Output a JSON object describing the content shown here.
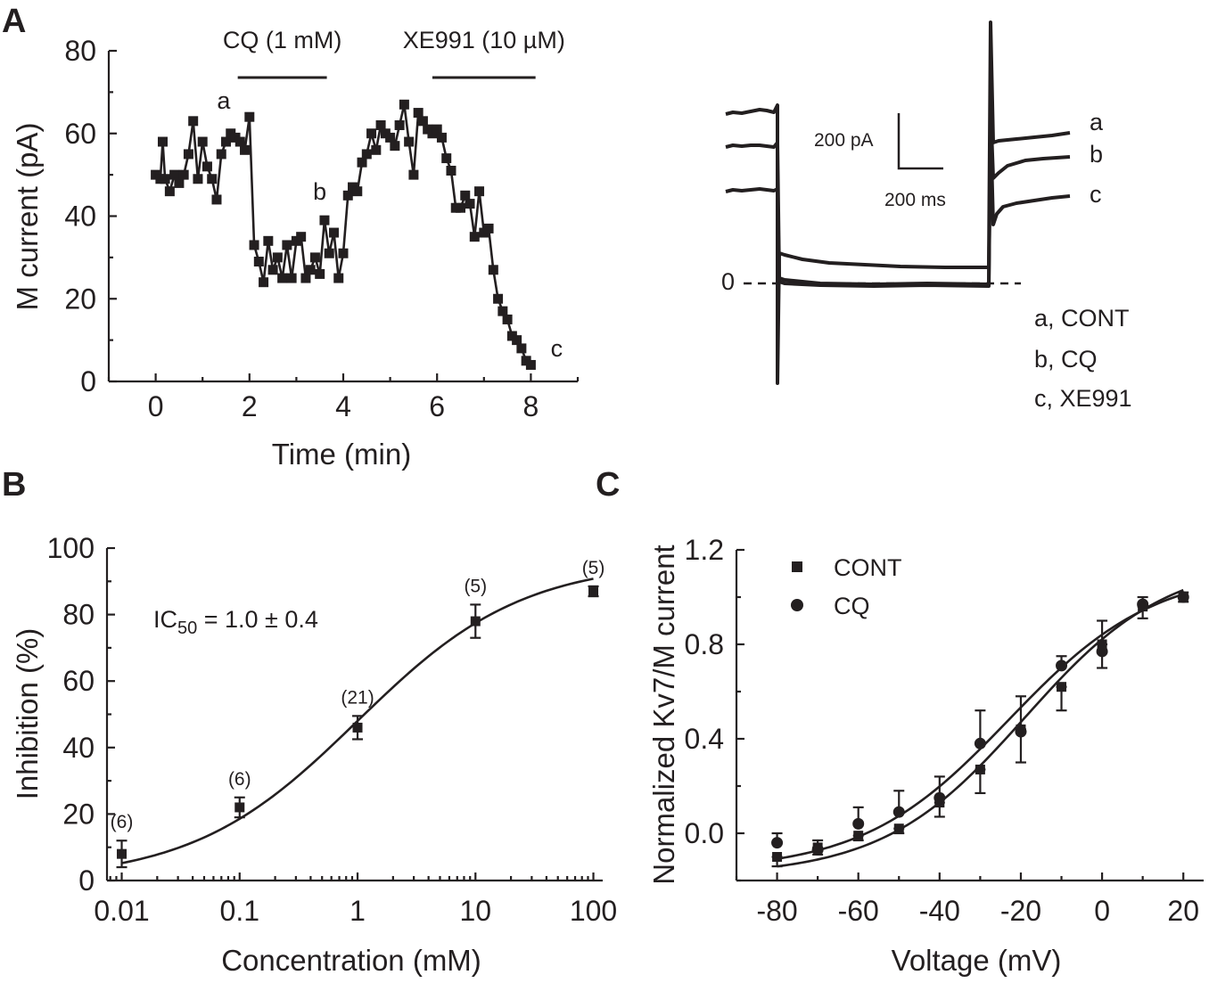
{
  "panels": {
    "A": "A",
    "B": "B",
    "C": "C"
  },
  "chart_data": [
    {
      "id": "A-time",
      "type": "line",
      "xlabel": "Time (min)",
      "ylabel": "M current (pA)",
      "xlim": [
        -1,
        9
      ],
      "ylim": [
        0,
        80
      ],
      "xticks": [
        0,
        2,
        4,
        6,
        8
      ],
      "yticks": [
        0,
        20,
        40,
        60,
        80
      ],
      "treatments": [
        {
          "label": "CQ (1 mM)",
          "start": 1.75,
          "end": 3.65
        },
        {
          "label": "XE991 (10 µM)",
          "start": 5.9,
          "end": 8.1
        }
      ],
      "point_labels": [
        {
          "text": "a",
          "x": 1.45,
          "y": 66
        },
        {
          "text": "b",
          "x": 3.5,
          "y": 44
        },
        {
          "text": "c",
          "x": 8.55,
          "y": 6
        }
      ],
      "x": [
        0.0,
        0.1,
        0.15,
        0.2,
        0.3,
        0.4,
        0.5,
        0.6,
        0.7,
        0.8,
        0.9,
        1.0,
        1.1,
        1.2,
        1.3,
        1.4,
        1.5,
        1.6,
        1.7,
        1.8,
        1.9,
        2.0,
        2.1,
        2.2,
        2.3,
        2.4,
        2.5,
        2.6,
        2.7,
        2.8,
        2.9,
        3.0,
        3.1,
        3.2,
        3.3,
        3.4,
        3.5,
        3.6,
        3.7,
        3.8,
        3.9,
        4.0,
        4.1,
        4.2,
        4.3,
        4.4,
        4.5,
        4.6,
        4.7,
        4.8,
        4.9,
        5.0,
        5.1,
        5.2,
        5.3,
        5.4,
        5.5,
        5.6,
        5.7,
        5.8,
        5.9,
        6.0,
        6.1,
        6.2,
        6.3,
        6.4,
        6.5,
        6.6,
        6.7,
        6.8,
        6.9,
        7.0,
        7.1,
        7.2,
        7.3,
        7.4,
        7.5,
        7.6,
        7.7,
        7.8,
        7.9,
        8.0
      ],
      "values": [
        50,
        49,
        58,
        49,
        46,
        50,
        48,
        50,
        55,
        63,
        49,
        58,
        52,
        49,
        44,
        55,
        58,
        60,
        59,
        58,
        56,
        64,
        33,
        29,
        24,
        34,
        27,
        30,
        25,
        33,
        25,
        34,
        35,
        25,
        27,
        30,
        26,
        39,
        31,
        36,
        25,
        31,
        45,
        47,
        46,
        53,
        55,
        60,
        56,
        62,
        60,
        59,
        57,
        62,
        67,
        58,
        50,
        65,
        63,
        61,
        60,
        61,
        59,
        54,
        51,
        42,
        42,
        45,
        43,
        35,
        46,
        36,
        37,
        27,
        20,
        17,
        15,
        11,
        10,
        8,
        5,
        4
      ]
    },
    {
      "id": "B-dose",
      "type": "scatter",
      "xlabel": "Concentration (mM)",
      "ylabel": "Inhibition (%)",
      "xscale": "log",
      "xlim": [
        0.0075,
        120
      ],
      "ylim": [
        0,
        100
      ],
      "xticks": [
        "0.01",
        "0.1",
        "1",
        "10",
        "100"
      ],
      "yticks": [
        0,
        20,
        40,
        60,
        80,
        100
      ],
      "annotation": {
        "prefix": "IC",
        "sub": "50",
        "suffix": " = 1.0 ± 0.4"
      },
      "x": [
        0.01,
        0.1,
        1,
        10,
        100
      ],
      "values": [
        8,
        22,
        46,
        78,
        87
      ],
      "errors": [
        4,
        3,
        3.5,
        5,
        1.5
      ],
      "n_labels": [
        "(6)",
        "(6)",
        "(21)",
        "(5)",
        "(5)"
      ],
      "fit": {
        "bottom": 0,
        "top": 96,
        "ic50": 1.0,
        "hill": 0.62
      }
    },
    {
      "id": "C-activation",
      "type": "scatter",
      "xlabel": "Voltage (mV)",
      "ylabel": "Normalized Kv7/M current",
      "xlim": [
        -90,
        25
      ],
      "ylim": [
        -0.2,
        1.2
      ],
      "xticks": [
        -80,
        -60,
        -40,
        -20,
        0,
        20
      ],
      "yticks": [
        "0.0",
        "0.4",
        "0.8",
        "1.2"
      ],
      "x": [
        -80,
        -70,
        -60,
        -50,
        -40,
        -30,
        -20,
        -10,
        0,
        10,
        20
      ],
      "series": [
        {
          "name": "CONT",
          "marker": "square",
          "values": [
            -0.1,
            -0.06,
            -0.01,
            0.02,
            0.13,
            0.27,
            0.44,
            0.62,
            0.8,
            0.96,
            1.0
          ],
          "errors": [
            0.04,
            0.03,
            0.02,
            0.02,
            0.06,
            0.1,
            0.14,
            0.1,
            0.1,
            0.05,
            0.02
          ],
          "fit": {
            "bottom": -0.18,
            "top": 1.16,
            "vhalf": -19,
            "slope": 17.5
          }
        },
        {
          "name": "CQ",
          "marker": "circle",
          "values": [
            -0.04,
            -0.07,
            0.04,
            0.09,
            0.15,
            0.38,
            0.43,
            0.71,
            0.77,
            0.97,
            1.0
          ],
          "errors": [
            0.04,
            0.04,
            0.07,
            0.09,
            0.09,
            0.14,
            0.15,
            0.04,
            0.13,
            0.03,
            0.02
          ],
          "fit": {
            "bottom": -0.16,
            "top": 1.12,
            "vhalf": -23,
            "slope": 18
          }
        }
      ]
    }
  ],
  "traces": {
    "scale_current": "200 pA",
    "scale_time": "200 ms",
    "zero_label": "0",
    "trace_labels": [
      "a",
      "b",
      "c"
    ],
    "legend": [
      "a, CONT",
      "b, CQ",
      "c, XE991"
    ]
  }
}
